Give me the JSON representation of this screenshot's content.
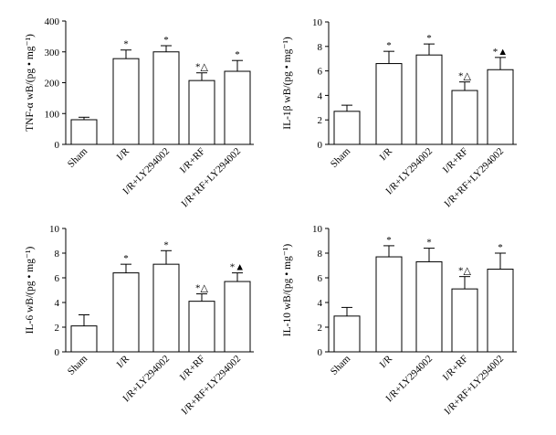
{
  "chart_data": [
    {
      "type": "bar",
      "ylabel": "TNF-α wB/(pg • mg⁻¹)",
      "ylim": [
        0,
        400
      ],
      "yticks": [
        0,
        100,
        200,
        300,
        400
      ],
      "categories": [
        "Sham",
        "I/R",
        "I/R+LY294002",
        "I/R+RF",
        "I/R+RF+LY294002"
      ],
      "values": [
        80,
        278,
        300,
        207,
        237
      ],
      "errors": [
        8,
        28,
        20,
        25,
        35
      ],
      "annotations": [
        "",
        "*",
        "*",
        "*△",
        "*"
      ]
    },
    {
      "type": "bar",
      "ylabel": "IL-1β wB/(pg • mg⁻¹)",
      "ylim": [
        0,
        10
      ],
      "yticks": [
        0,
        2,
        4,
        6,
        8,
        10
      ],
      "categories": [
        "Sham",
        "I/R",
        "I/R+LY294002",
        "I/R+RF",
        "I/R+RF+LY294002"
      ],
      "values": [
        2.7,
        6.6,
        7.3,
        4.4,
        6.1
      ],
      "errors": [
        0.5,
        1.0,
        0.9,
        0.7,
        1.0
      ],
      "annotations": [
        "",
        "*",
        "*",
        "*△",
        "*▲"
      ]
    },
    {
      "type": "bar",
      "ylabel": "IL-6 wB/(pg • mg⁻¹)",
      "ylim": [
        0,
        10
      ],
      "yticks": [
        0,
        2,
        4,
        6,
        8,
        10
      ],
      "categories": [
        "Sham",
        "I/R",
        "I/R+LY294002",
        "I/R+RF",
        "I/R+RF+LY294002"
      ],
      "values": [
        2.1,
        6.4,
        7.1,
        4.1,
        5.7
      ],
      "errors": [
        0.9,
        0.7,
        1.1,
        0.6,
        0.7
      ],
      "annotations": [
        "",
        "*",
        "*",
        "*△",
        "*▲"
      ]
    },
    {
      "type": "bar",
      "ylabel": "IL-10 wB/(pg • mg⁻¹)",
      "ylim": [
        0,
        10
      ],
      "yticks": [
        0,
        2,
        4,
        6,
        8,
        10
      ],
      "categories": [
        "Sham",
        "I/R",
        "I/R+LY294002",
        "I/R+RF",
        "I/R+RF+LY294002"
      ],
      "values": [
        2.9,
        7.7,
        7.3,
        5.1,
        6.7
      ],
      "errors": [
        0.7,
        0.9,
        1.1,
        1.0,
        1.3
      ],
      "annotations": [
        "",
        "*",
        "*",
        "*△",
        "*"
      ]
    }
  ]
}
